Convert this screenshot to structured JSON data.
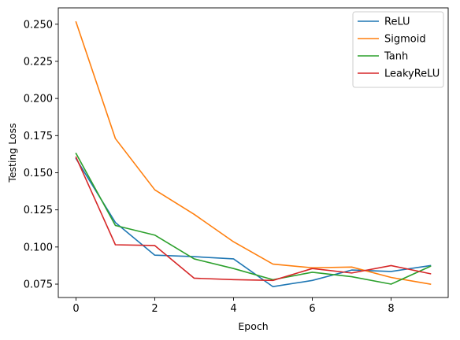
{
  "chart_data": {
    "type": "line",
    "title": "",
    "xlabel": "Epoch",
    "ylabel": "Testing Loss",
    "xlim": [
      -0.45,
      9.45
    ],
    "ylim": [
      0.066,
      0.261
    ],
    "xticks": [
      0,
      2,
      4,
      6,
      8
    ],
    "xtick_labels": [
      "0",
      "2",
      "4",
      "6",
      "8"
    ],
    "yticks": [
      0.075,
      0.1,
      0.125,
      0.15,
      0.175,
      0.2,
      0.225,
      0.25
    ],
    "ytick_labels": [
      "0.075",
      "0.100",
      "0.125",
      "0.150",
      "0.175",
      "0.200",
      "0.225",
      "0.250"
    ],
    "grid": false,
    "legend_position": "top-right",
    "x": [
      0,
      1,
      2,
      3,
      4,
      5,
      6,
      7,
      8,
      9
    ],
    "series": [
      {
        "name": "ReLU",
        "color": "#1f77b4",
        "values": [
          0.1595,
          0.1165,
          0.0945,
          0.0935,
          0.092,
          0.0733,
          0.0775,
          0.0845,
          0.0835,
          0.0875
        ]
      },
      {
        "name": "Sigmoid",
        "color": "#ff7f0e",
        "values": [
          0.2515,
          0.173,
          0.1385,
          0.122,
          0.1035,
          0.0885,
          0.086,
          0.0865,
          0.0795,
          0.075
        ]
      },
      {
        "name": "Tanh",
        "color": "#2ca02c",
        "values": [
          0.163,
          0.1145,
          0.108,
          0.092,
          0.0855,
          0.078,
          0.083,
          0.08,
          0.075,
          0.087
        ]
      },
      {
        "name": "LeakyReLU",
        "color": "#d62728",
        "values": [
          0.1605,
          0.1015,
          0.101,
          0.079,
          0.078,
          0.0775,
          0.0855,
          0.0825,
          0.0875,
          0.082
        ]
      }
    ]
  }
}
